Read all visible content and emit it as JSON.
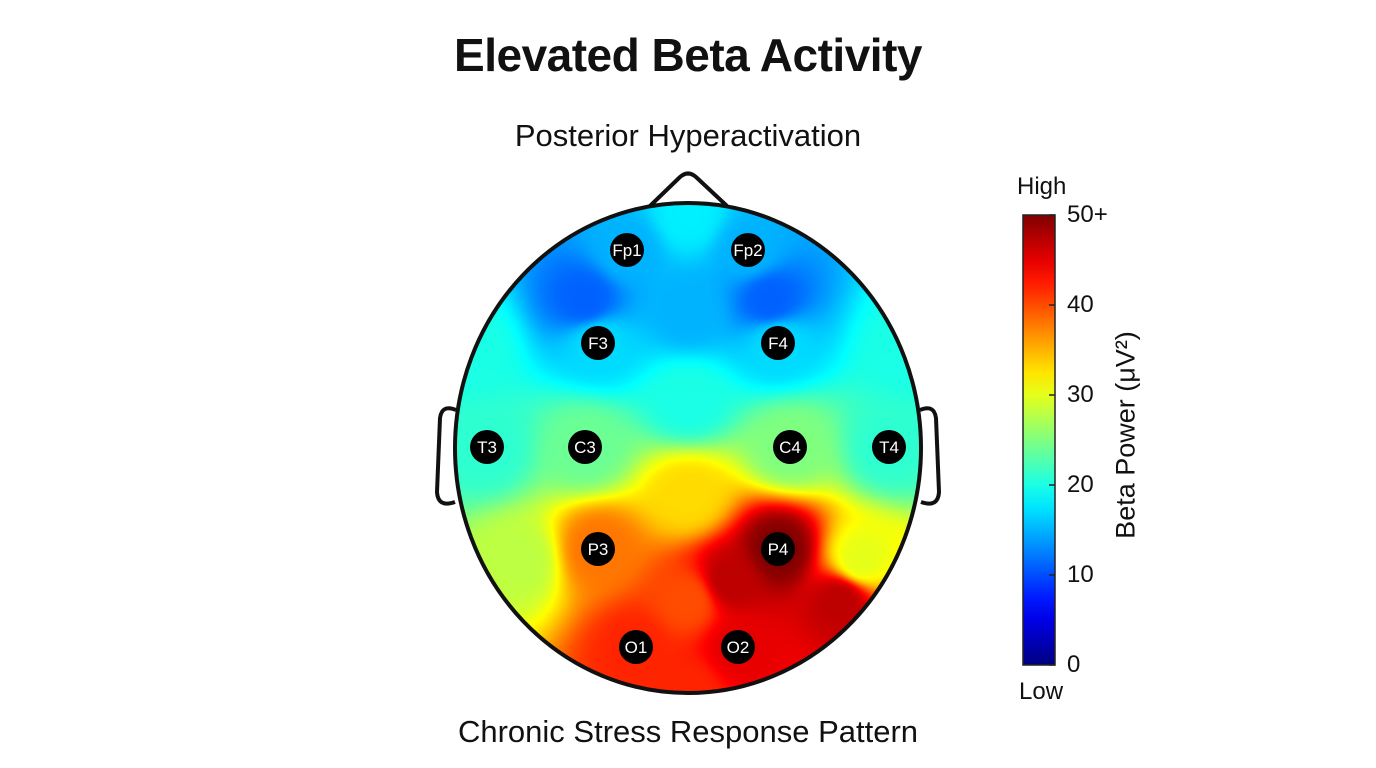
{
  "title": "Elevated Beta Activity",
  "subtitle": "Posterior Hyperactivation",
  "caption": "Chronic Stress Response Pattern",
  "chart_data": {
    "type": "heatmap",
    "subtype": "eeg-scalp-topography",
    "title": "Elevated Beta Activity",
    "colormap": "jet",
    "colorbar": {
      "label": "Beta Power (μV²)",
      "high_label": "High",
      "low_label": "Low",
      "range": [
        0,
        50
      ],
      "ticks": [
        {
          "value": 0,
          "label": "0"
        },
        {
          "value": 10,
          "label": "10"
        },
        {
          "value": 20,
          "label": "20"
        },
        {
          "value": 30,
          "label": "30"
        },
        {
          "value": 40,
          "label": "40"
        },
        {
          "value": 50,
          "label": "50+"
        }
      ]
    },
    "electrodes": [
      {
        "label": "Fp1",
        "value": 15
      },
      {
        "label": "Fp2",
        "value": 15
      },
      {
        "label": "F3",
        "value": 17
      },
      {
        "label": "F4",
        "value": 17
      },
      {
        "label": "T3",
        "value": 21
      },
      {
        "label": "C3",
        "value": 24
      },
      {
        "label": "C4",
        "value": 25
      },
      {
        "label": "T4",
        "value": 21
      },
      {
        "label": "P3",
        "value": 38
      },
      {
        "label": "P4",
        "value": 50
      },
      {
        "label": "O1",
        "value": 42
      },
      {
        "label": "O2",
        "value": 45
      }
    ]
  }
}
